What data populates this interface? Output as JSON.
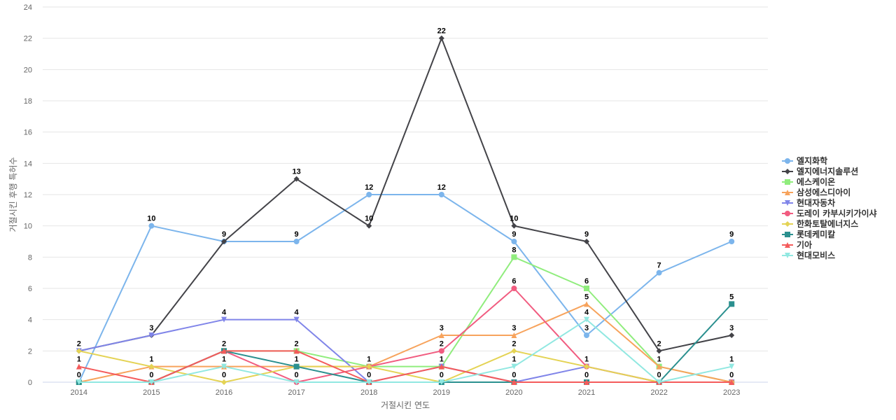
{
  "chart_data": {
    "type": "line",
    "title": "",
    "xlabel": "거절시킨 연도",
    "ylabel": "거절시킨 후행 특허수",
    "x": [
      "2014",
      "2015",
      "2016",
      "2017",
      "2018",
      "2019",
      "2020",
      "2021",
      "2022",
      "2023"
    ],
    "ylim": [
      0,
      24
    ],
    "yticks": [
      0,
      2,
      4,
      6,
      8,
      10,
      12,
      14,
      16,
      18,
      20,
      22,
      24
    ],
    "grid": true,
    "legend_position": "right",
    "series": [
      {
        "name": "엘지화학",
        "color": "#7cb5ec",
        "marker": "circle",
        "values": [
          0,
          10,
          9,
          9,
          12,
          12,
          9,
          3,
          7,
          9
        ]
      },
      {
        "name": "엘지에너지솔루션",
        "color": "#434348",
        "marker": "diamond",
        "values": [
          2,
          3,
          9,
          13,
          10,
          22,
          10,
          9,
          2,
          3
        ]
      },
      {
        "name": "에스케이온",
        "color": "#90ed7d",
        "marker": "square",
        "values": [
          0,
          0,
          2,
          2,
          1,
          1,
          8,
          6,
          1,
          0
        ]
      },
      {
        "name": "삼성에스디아이",
        "color": "#f7a35c",
        "marker": "triangle",
        "values": [
          0,
          1,
          1,
          1,
          1,
          3,
          3,
          5,
          1,
          0
        ]
      },
      {
        "name": "현대자동차",
        "color": "#8085e9",
        "marker": "triangle-down",
        "values": [
          2,
          3,
          4,
          4,
          0,
          1,
          0,
          1,
          0,
          0
        ]
      },
      {
        "name": "도레이 카부시키가이샤",
        "color": "#f15c80",
        "marker": "circle",
        "values": [
          0,
          0,
          2,
          0,
          1,
          2,
          6,
          1,
          0,
          0
        ]
      },
      {
        "name": "한화토탈에너지스",
        "color": "#e4d354",
        "marker": "diamond",
        "values": [
          2,
          1,
          0,
          1,
          1,
          0,
          2,
          1,
          0,
          0
        ]
      },
      {
        "name": "롯데케미칼",
        "color": "#2b908f",
        "marker": "square",
        "values": [
          0,
          0,
          2,
          1,
          0,
          0,
          0,
          0,
          0,
          5
        ]
      },
      {
        "name": "기아",
        "color": "#f45b5b",
        "marker": "triangle",
        "values": [
          1,
          0,
          2,
          2,
          0,
          1,
          0,
          0,
          0,
          0
        ]
      },
      {
        "name": "현대모비스",
        "color": "#91e8e1",
        "marker": "triangle-down",
        "values": [
          0,
          0,
          1,
          0,
          0,
          0,
          1,
          4,
          0,
          1
        ]
      }
    ],
    "data_labels": [
      {
        "x": "2014",
        "text": "2",
        "value": 2
      },
      {
        "x": "2014",
        "text": "1",
        "value": 1
      },
      {
        "x": "2014",
        "text": "0",
        "value": 0
      },
      {
        "x": "2015",
        "text": "10",
        "value": 10
      },
      {
        "x": "2015",
        "text": "3",
        "value": 3
      },
      {
        "x": "2015",
        "text": "1",
        "value": 1
      },
      {
        "x": "2015",
        "text": "0",
        "value": 0
      },
      {
        "x": "2016",
        "text": "9",
        "value": 9
      },
      {
        "x": "2016",
        "text": "4",
        "value": 4
      },
      {
        "x": "2016",
        "text": "2",
        "value": 2
      },
      {
        "x": "2016",
        "text": "1",
        "value": 1
      },
      {
        "x": "2016",
        "text": "0",
        "value": 0
      },
      {
        "x": "2017",
        "text": "13",
        "value": 13
      },
      {
        "x": "2017",
        "text": "9",
        "value": 9
      },
      {
        "x": "2017",
        "text": "4",
        "value": 4
      },
      {
        "x": "2017",
        "text": "2",
        "value": 2
      },
      {
        "x": "2017",
        "text": "1",
        "value": 1
      },
      {
        "x": "2017",
        "text": "0",
        "value": 0
      },
      {
        "x": "2018",
        "text": "12",
        "value": 12
      },
      {
        "x": "2018",
        "text": "10",
        "value": 10
      },
      {
        "x": "2018",
        "text": "1",
        "value": 1
      },
      {
        "x": "2018",
        "text": "0",
        "value": 0
      },
      {
        "x": "2019",
        "text": "22",
        "value": 22
      },
      {
        "x": "2019",
        "text": "12",
        "value": 12
      },
      {
        "x": "2019",
        "text": "3",
        "value": 3
      },
      {
        "x": "2019",
        "text": "2",
        "value": 2
      },
      {
        "x": "2019",
        "text": "1",
        "value": 1
      },
      {
        "x": "2019",
        "text": "0",
        "value": 0
      },
      {
        "x": "2020",
        "text": "10",
        "value": 10
      },
      {
        "x": "2020",
        "text": "9",
        "value": 9
      },
      {
        "x": "2020",
        "text": "8",
        "value": 8
      },
      {
        "x": "2020",
        "text": "6",
        "value": 6
      },
      {
        "x": "2020",
        "text": "3",
        "value": 3
      },
      {
        "x": "2020",
        "text": "2",
        "value": 2
      },
      {
        "x": "2020",
        "text": "1",
        "value": 1
      },
      {
        "x": "2020",
        "text": "0",
        "value": 0
      },
      {
        "x": "2021",
        "text": "9",
        "value": 9
      },
      {
        "x": "2021",
        "text": "6",
        "value": 6
      },
      {
        "x": "2021",
        "text": "5",
        "value": 5
      },
      {
        "x": "2021",
        "text": "4",
        "value": 4
      },
      {
        "x": "2021",
        "text": "3",
        "value": 3
      },
      {
        "x": "2021",
        "text": "1",
        "value": 1
      },
      {
        "x": "2021",
        "text": "0",
        "value": 0
      },
      {
        "x": "2022",
        "text": "7",
        "value": 7
      },
      {
        "x": "2022",
        "text": "2",
        "value": 2
      },
      {
        "x": "2022",
        "text": "1",
        "value": 1
      },
      {
        "x": "2022",
        "text": "0",
        "value": 0
      },
      {
        "x": "2023",
        "text": "9",
        "value": 9
      },
      {
        "x": "2023",
        "text": "5",
        "value": 5
      },
      {
        "x": "2023",
        "text": "3",
        "value": 3
      },
      {
        "x": "2023",
        "text": "1",
        "value": 1
      },
      {
        "x": "2023",
        "text": "0",
        "value": 0
      }
    ]
  }
}
